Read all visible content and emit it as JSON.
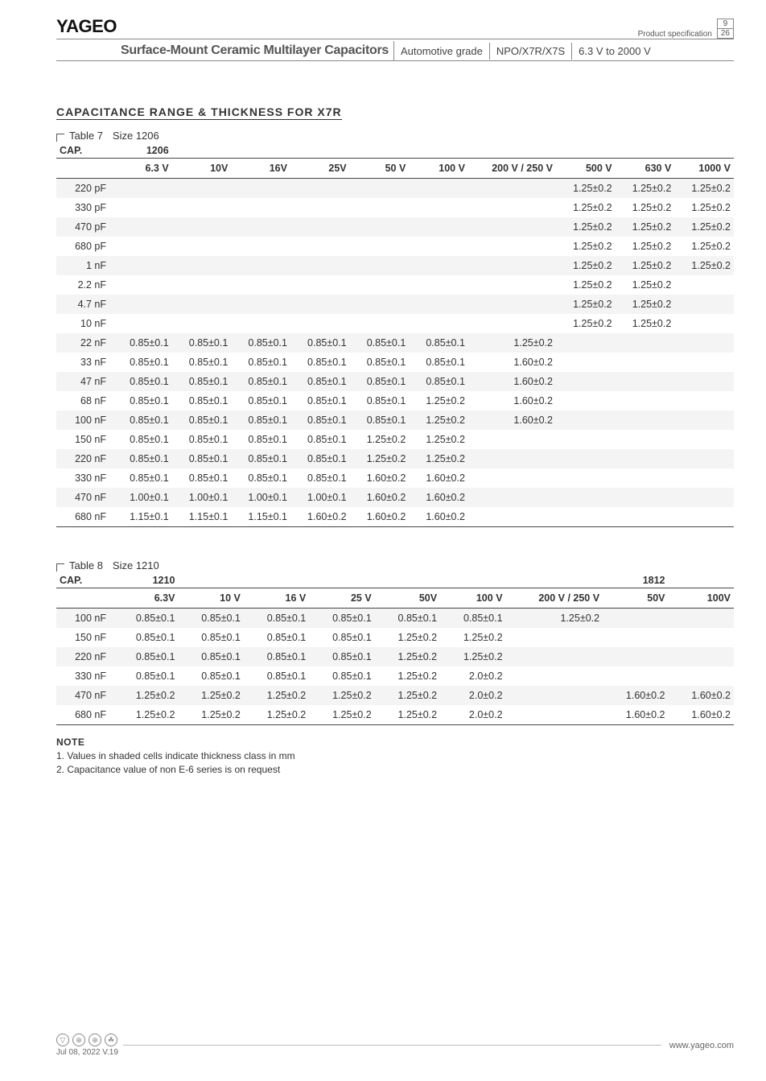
{
  "header": {
    "brand": "YAGEO",
    "spec_label": "Product specification",
    "page_current": "9",
    "page_total": "26",
    "title": "Surface-Mount Ceramic Multilayer Capacitors",
    "tag_automotive": "Automotive grade",
    "tag_dielectric": "NPO/X7R/X7S",
    "tag_voltage": "6.3 V to 2000 V"
  },
  "section_title": "CAPACITANCE RANGE & THICKNESS FOR X7R",
  "table7": {
    "label": "Table 7",
    "size_label": "Size 1206",
    "cap_label": "CAP.",
    "size_header": "1206",
    "columns": [
      "6.3 V",
      "10V",
      "16V",
      "25V",
      "50 V",
      "100 V",
      "200 V / 250 V",
      "500 V",
      "630 V",
      "1000 V"
    ],
    "rows": [
      {
        "cap": "220 pF",
        "cells": [
          "",
          "",
          "",
          "",
          "",
          "",
          "",
          "1.25±0.2",
          "1.25±0.2",
          "1.25±0.2"
        ]
      },
      {
        "cap": "330 pF",
        "cells": [
          "",
          "",
          "",
          "",
          "",
          "",
          "",
          "1.25±0.2",
          "1.25±0.2",
          "1.25±0.2"
        ]
      },
      {
        "cap": "470 pF",
        "cells": [
          "",
          "",
          "",
          "",
          "",
          "",
          "",
          "1.25±0.2",
          "1.25±0.2",
          "1.25±0.2"
        ]
      },
      {
        "cap": "680 pF",
        "cells": [
          "",
          "",
          "",
          "",
          "",
          "",
          "",
          "1.25±0.2",
          "1.25±0.2",
          "1.25±0.2"
        ]
      },
      {
        "cap": "1 nF",
        "cells": [
          "",
          "",
          "",
          "",
          "",
          "",
          "",
          "1.25±0.2",
          "1.25±0.2",
          "1.25±0.2"
        ]
      },
      {
        "cap": "2.2 nF",
        "cells": [
          "",
          "",
          "",
          "",
          "",
          "",
          "",
          "1.25±0.2",
          "1.25±0.2",
          ""
        ]
      },
      {
        "cap": "4.7 nF",
        "cells": [
          "",
          "",
          "",
          "",
          "",
          "",
          "",
          "1.25±0.2",
          "1.25±0.2",
          ""
        ]
      },
      {
        "cap": "10 nF",
        "cells": [
          "",
          "",
          "",
          "",
          "",
          "",
          "",
          "1.25±0.2",
          "1.25±0.2",
          ""
        ]
      },
      {
        "cap": "22 nF",
        "cells": [
          "0.85±0.1",
          "0.85±0.1",
          "0.85±0.1",
          "0.85±0.1",
          "0.85±0.1",
          "0.85±0.1",
          "1.25±0.2",
          "",
          "",
          ""
        ]
      },
      {
        "cap": "33 nF",
        "cells": [
          "0.85±0.1",
          "0.85±0.1",
          "0.85±0.1",
          "0.85±0.1",
          "0.85±0.1",
          "0.85±0.1",
          "1.60±0.2",
          "",
          "",
          ""
        ]
      },
      {
        "cap": "47 nF",
        "cells": [
          "0.85±0.1",
          "0.85±0.1",
          "0.85±0.1",
          "0.85±0.1",
          "0.85±0.1",
          "0.85±0.1",
          "1.60±0.2",
          "",
          "",
          ""
        ]
      },
      {
        "cap": "68 nF",
        "cells": [
          "0.85±0.1",
          "0.85±0.1",
          "0.85±0.1",
          "0.85±0.1",
          "0.85±0.1",
          "1.25±0.2",
          "1.60±0.2",
          "",
          "",
          ""
        ]
      },
      {
        "cap": "100 nF",
        "cells": [
          "0.85±0.1",
          "0.85±0.1",
          "0.85±0.1",
          "0.85±0.1",
          "0.85±0.1",
          "1.25±0.2",
          "1.60±0.2",
          "",
          "",
          ""
        ]
      },
      {
        "cap": "150 nF",
        "cells": [
          "0.85±0.1",
          "0.85±0.1",
          "0.85±0.1",
          "0.85±0.1",
          "1.25±0.2",
          "1.25±0.2",
          "",
          "",
          "",
          ""
        ]
      },
      {
        "cap": "220 nF",
        "cells": [
          "0.85±0.1",
          "0.85±0.1",
          "0.85±0.1",
          "0.85±0.1",
          "1.25±0.2",
          "1.25±0.2",
          "",
          "",
          "",
          ""
        ]
      },
      {
        "cap": "330 nF",
        "cells": [
          "0.85±0.1",
          "0.85±0.1",
          "0.85±0.1",
          "0.85±0.1",
          "1.60±0.2",
          "1.60±0.2",
          "",
          "",
          "",
          ""
        ]
      },
      {
        "cap": "470 nF",
        "cells": [
          "1.00±0.1",
          "1.00±0.1",
          "1.00±0.1",
          "1.00±0.1",
          "1.60±0.2",
          "1.60±0.2",
          "",
          "",
          "",
          ""
        ]
      },
      {
        "cap": "680 nF",
        "cells": [
          "1.15±0.1",
          "1.15±0.1",
          "1.15±0.1",
          "1.60±0.2",
          "1.60±0.2",
          "1.60±0.2",
          "",
          "",
          "",
          ""
        ]
      }
    ]
  },
  "table8": {
    "label": "Table 8",
    "size_label": "Size 1210",
    "cap_label": "CAP.",
    "size_header_a": "1210",
    "size_header_b": "1812",
    "columns": [
      "6.3V",
      "10 V",
      "16 V",
      "25 V",
      "50V",
      "100 V",
      "200 V / 250 V",
      "50V",
      "100V"
    ],
    "rows": [
      {
        "cap": "100 nF",
        "cells": [
          "0.85±0.1",
          "0.85±0.1",
          "0.85±0.1",
          "0.85±0.1",
          "0.85±0.1",
          "0.85±0.1",
          "1.25±0.2",
          "",
          ""
        ]
      },
      {
        "cap": "150 nF",
        "cells": [
          "0.85±0.1",
          "0.85±0.1",
          "0.85±0.1",
          "0.85±0.1",
          "1.25±0.2",
          "1.25±0.2",
          "",
          "",
          ""
        ]
      },
      {
        "cap": "220 nF",
        "cells": [
          "0.85±0.1",
          "0.85±0.1",
          "0.85±0.1",
          "0.85±0.1",
          "1.25±0.2",
          "1.25±0.2",
          "",
          "",
          ""
        ]
      },
      {
        "cap": "330 nF",
        "cells": [
          "0.85±0.1",
          "0.85±0.1",
          "0.85±0.1",
          "0.85±0.1",
          "1.25±0.2",
          "2.0±0.2",
          "",
          "",
          ""
        ]
      },
      {
        "cap": "470 nF",
        "cells": [
          "1.25±0.2",
          "1.25±0.2",
          "1.25±0.2",
          "1.25±0.2",
          "1.25±0.2",
          "2.0±0.2",
          "",
          "1.60±0.2",
          "1.60±0.2"
        ]
      },
      {
        "cap": "680 nF",
        "cells": [
          "1.25±0.2",
          "1.25±0.2",
          "1.25±0.2",
          "1.25±0.2",
          "1.25±0.2",
          "2.0±0.2",
          "",
          "1.60±0.2",
          "1.60±0.2"
        ]
      }
    ]
  },
  "notes": {
    "heading": "NOTE",
    "n1": "1. Values in shaded cells indicate thickness class in mm",
    "n2": "2. Capacitance value of non E-6 series is on request"
  },
  "footer": {
    "date": "Jul 08, 2022 V.19",
    "url": "www.yageo.com"
  }
}
